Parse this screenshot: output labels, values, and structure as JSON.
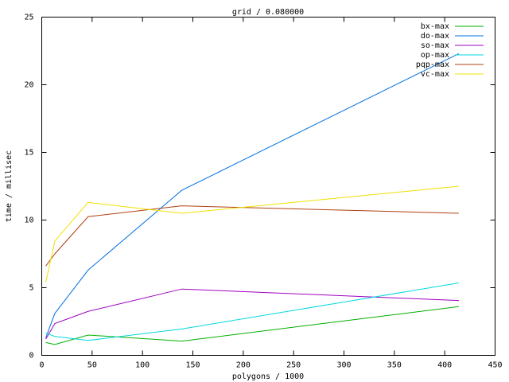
{
  "chart_data": {
    "type": "line",
    "title": "grid / 0.080000",
    "x_label": "polygons / 1000",
    "y_label": "time / millisec",
    "x": [
      4,
      13,
      46,
      139,
      414
    ],
    "series": [
      {
        "name": "bx-max",
        "color": "#00b000",
        "values": [
          0.95,
          0.8,
          1.5,
          1.05,
          3.6
        ]
      },
      {
        "name": "do-max",
        "color": "#0070e0",
        "values": [
          1.3,
          3.1,
          6.3,
          12.2,
          22.3
        ]
      },
      {
        "name": "so-max",
        "color": "#a000c0",
        "values": [
          1.2,
          2.35,
          3.25,
          4.9,
          4.05
        ]
      },
      {
        "name": "op-max",
        "color": "#00d8e0",
        "values": [
          1.65,
          1.4,
          1.1,
          1.95,
          5.35
        ]
      },
      {
        "name": "pqp-max",
        "color": "#b04010",
        "values": [
          6.6,
          7.5,
          10.25,
          11.05,
          10.5
        ]
      },
      {
        "name": "vc-max",
        "color": "#f0e000",
        "values": [
          5.4,
          8.45,
          11.3,
          10.5,
          12.5
        ]
      }
    ],
    "xlim": [
      0,
      450
    ],
    "xticks": [
      0,
      50,
      100,
      150,
      200,
      250,
      300,
      350,
      400,
      450
    ],
    "ylim": [
      0,
      25
    ],
    "yticks": [
      0,
      5,
      10,
      15,
      20,
      25
    ]
  }
}
